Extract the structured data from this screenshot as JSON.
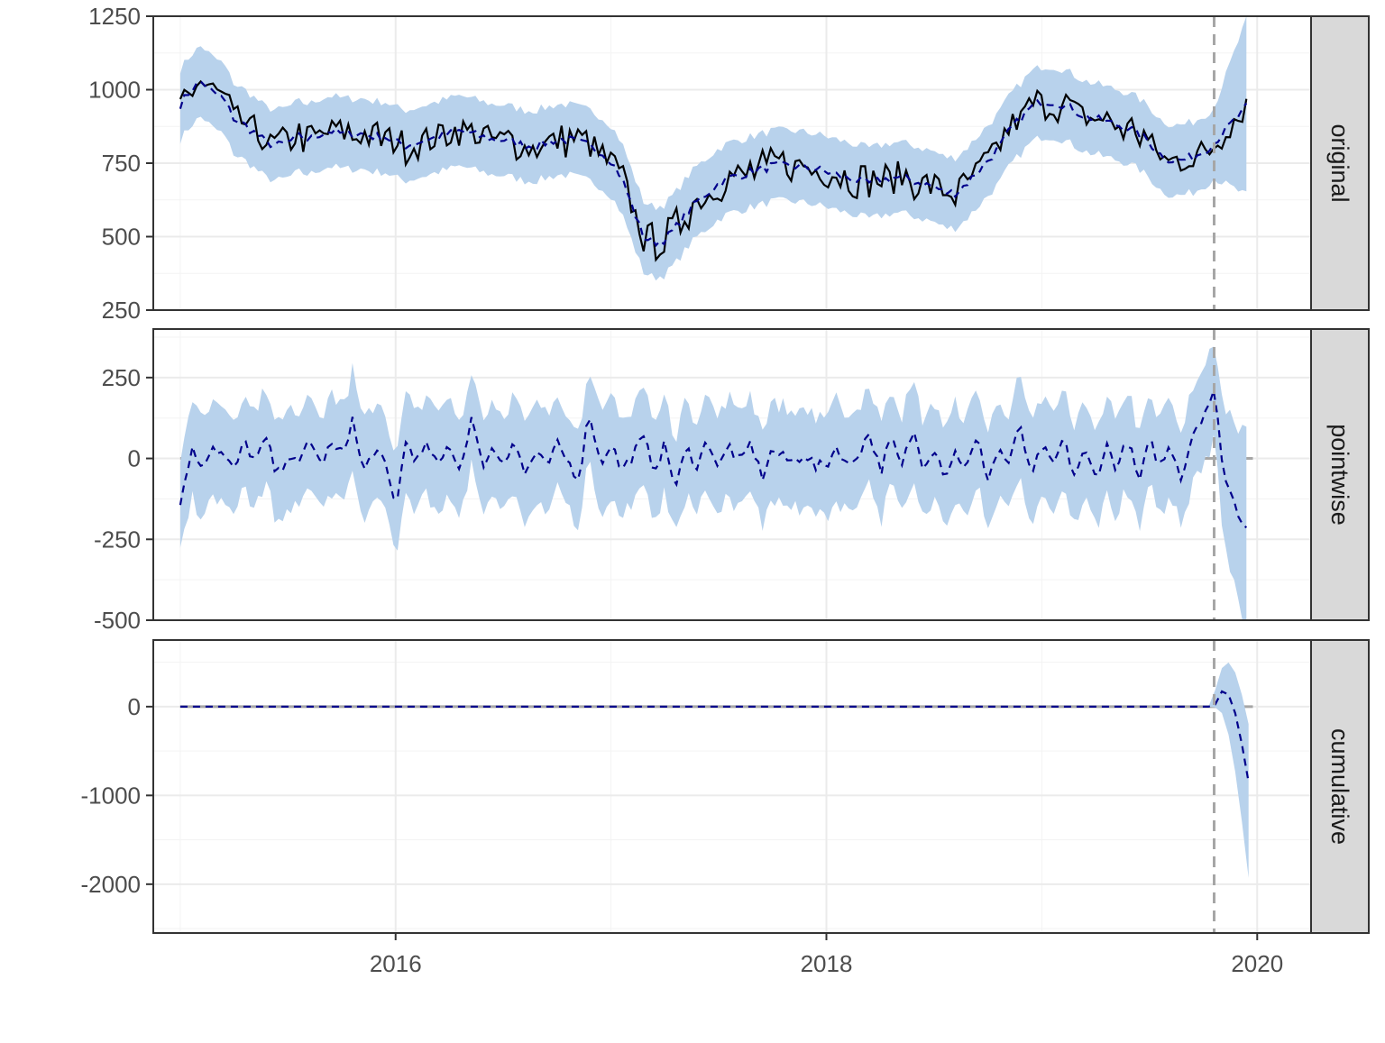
{
  "chart_data": {
    "type": "line",
    "title": "",
    "xlabel": "",
    "ylabel": "",
    "x_axis": {
      "range": [
        2014.875,
        2020.25
      ],
      "ticks": [
        2016,
        2018,
        2020
      ],
      "tick_labels": [
        "2016",
        "2018",
        "2020"
      ],
      "minor_ticks": [
        2015,
        2017,
        2019
      ]
    },
    "intervention_x": 2019.8,
    "grid": true,
    "legend": "none",
    "colors": {
      "ribbon": "#b8d2ec",
      "observed": "#000000",
      "predicted": "#00008b",
      "zero_line": "#a6a6a6",
      "intervention_line": "#a6a6a6",
      "strip_fill": "#d9d9d9",
      "panel_border": "#333333",
      "grid_major": "#ebebeb",
      "tick_text": "#4d4d4d",
      "strip_text": "#1a1a1a"
    },
    "panels": [
      {
        "name": "original",
        "ylim": [
          250,
          1250
        ],
        "yticks": [
          250,
          500,
          750,
          1000,
          1250
        ],
        "ytick_labels": [
          "250",
          "500",
          "750",
          "1000",
          "1250"
        ],
        "series": [
          {
            "x": [
              2015.0,
              2015.05,
              2015.1,
              2015.15,
              2015.2,
              2015.25,
              2015.3,
              2015.35,
              2015.4,
              2015.45,
              2015.5,
              2015.55,
              2015.6,
              2015.65,
              2015.7,
              2015.75,
              2015.8,
              2015.85,
              2015.9,
              2015.95,
              2016.0,
              2016.05,
              2016.1,
              2016.15,
              2016.2,
              2016.25,
              2016.3,
              2016.35,
              2016.4,
              2016.45,
              2016.5,
              2016.55,
              2016.6,
              2016.65,
              2016.7,
              2016.75,
              2016.8,
              2016.85,
              2016.9,
              2016.95,
              2017.0,
              2017.05,
              2017.1,
              2017.15,
              2017.2,
              2017.25,
              2017.3,
              2017.35,
              2017.4,
              2017.45,
              2017.5,
              2017.55,
              2017.6,
              2017.65,
              2017.7,
              2017.75,
              2017.8,
              2017.85,
              2017.9,
              2017.95,
              2018.0,
              2018.05,
              2018.1,
              2018.15,
              2018.2,
              2018.25,
              2018.3,
              2018.35,
              2018.4,
              2018.45,
              2018.5,
              2018.55,
              2018.6,
              2018.65,
              2018.7,
              2018.75,
              2018.8,
              2018.85,
              2018.9,
              2018.95,
              2019.0,
              2019.05,
              2019.1,
              2019.15,
              2019.2,
              2019.25,
              2019.3,
              2019.35,
              2019.4,
              2019.45,
              2019.5,
              2019.55,
              2019.6,
              2019.65,
              2019.7,
              2019.75,
              2019.8,
              2019.85,
              2019.9,
              2019.95
            ],
            "y": [
              950,
              1000,
              1030,
              990,
              970,
              900,
              880,
              850,
              820,
              810,
              820,
              840,
              830,
              850,
              860,
              850,
              850,
              850,
              840,
              840,
              820,
              810,
              820,
              830,
              840,
              850,
              860,
              850,
              840,
              830,
              830,
              820,
              810,
              810,
              820,
              830,
              830,
              820,
              810,
              790,
              760,
              700,
              600,
              500,
              480,
              490,
              530,
              580,
              620,
              650,
              680,
              700,
              710,
              720,
              730,
              740,
              740,
              740,
              735,
              730,
              720,
              710,
              700,
              690,
              680,
              690,
              700,
              700,
              690,
              680,
              670,
              650,
              650,
              680,
              720,
              760,
              800,
              860,
              900,
              940,
              960,
              960,
              950,
              930,
              910,
              900,
              890,
              880,
              870,
              850,
              820,
              780,
              760,
              760,
              770,
              790,
              820,
              860,
              900,
              940
            ]
          }
        ]
      },
      {
        "name": "pointwise",
        "ylim": [
          -500,
          400
        ],
        "yticks": [
          -500,
          -250,
          0,
          250
        ],
        "ytick_labels": [
          "-500",
          "-250",
          "0",
          "250"
        ],
        "series": [
          {
            "x": [
              2015.0,
              2015.05,
              2015.1,
              2015.15,
              2015.2,
              2015.25,
              2015.3,
              2015.35,
              2015.4,
              2015.45,
              2015.5,
              2015.55,
              2015.6,
              2015.65,
              2015.7,
              2015.75,
              2015.8,
              2015.85,
              2015.9,
              2015.95,
              2016.0,
              2016.05,
              2016.1,
              2016.15,
              2016.2,
              2016.25,
              2016.3,
              2016.35,
              2016.4,
              2016.45,
              2016.5,
              2016.55,
              2016.6,
              2016.65,
              2016.7,
              2016.75,
              2016.8,
              2016.85,
              2016.9,
              2016.95,
              2017.0,
              2017.05,
              2017.1,
              2017.15,
              2017.2,
              2017.25,
              2017.3,
              2017.35,
              2017.4,
              2017.45,
              2017.5,
              2017.55,
              2017.6,
              2017.65,
              2017.7,
              2017.75,
              2017.8,
              2017.85,
              2017.9,
              2017.95,
              2018.0,
              2018.05,
              2018.1,
              2018.15,
              2018.2,
              2018.25,
              2018.3,
              2018.35,
              2018.4,
              2018.45,
              2018.5,
              2018.55,
              2018.6,
              2018.65,
              2018.7,
              2018.75,
              2018.8,
              2018.85,
              2018.9,
              2018.95,
              2019.0,
              2019.05,
              2019.1,
              2019.15,
              2019.2,
              2019.25,
              2019.3,
              2019.35,
              2019.4,
              2019.45,
              2019.5,
              2019.55,
              2019.6,
              2019.65,
              2019.7,
              2019.75,
              2019.8,
              2019.85,
              2019.9,
              2019.95
            ],
            "y": [
              -140,
              30,
              -20,
              40,
              10,
              -40,
              50,
              -10,
              60,
              -60,
              20,
              -30,
              70,
              -20,
              40,
              10,
              120,
              -50,
              30,
              -20,
              -150,
              60,
              -10,
              40,
              -30,
              50,
              -40,
              130,
              -20,
              30,
              -10,
              60,
              -50,
              20,
              -30,
              40,
              -10,
              -60,
              150,
              -20,
              50,
              -40,
              10,
              60,
              -30,
              40,
              -90,
              30,
              -20,
              60,
              -30,
              40,
              -20,
              50,
              -60,
              30,
              0,
              -10,
              20,
              -30,
              -20,
              40,
              -30,
              20,
              80,
              -40,
              60,
              -30,
              90,
              -20,
              40,
              -50,
              20,
              -30,
              60,
              -60,
              30,
              -20,
              110,
              -70,
              40,
              -30,
              60,
              -50,
              20,
              -60,
              40,
              -30,
              60,
              -80,
              50,
              -20,
              40,
              -60,
              80,
              140,
              200,
              -60,
              -150,
              -210
            ]
          }
        ]
      },
      {
        "name": "cumulative",
        "ylim": [
          -2550,
          750
        ],
        "yticks": [
          -2000,
          -1000,
          0
        ],
        "ytick_labels": [
          "-2000",
          "-1000",
          "0"
        ],
        "series": [
          {
            "x": [
              2015.0,
              2015.5,
              2016.0,
              2016.5,
              2017.0,
              2017.5,
              2018.0,
              2018.5,
              2019.0,
              2019.5,
              2019.8,
              2019.84,
              2019.88,
              2019.92,
              2019.96
            ],
            "y": [
              0,
              0,
              0,
              0,
              0,
              0,
              0,
              0,
              0,
              0,
              0,
              190,
              110,
              -300,
              -850
            ]
          }
        ]
      }
    ]
  }
}
